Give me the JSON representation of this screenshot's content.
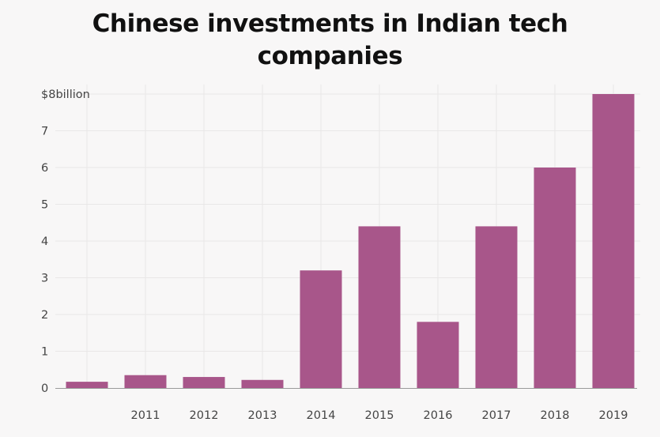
{
  "chart_data": {
    "type": "bar",
    "title": "Chinese investments in Indian tech companies",
    "categories": [
      "",
      "2011",
      "2012",
      "2013",
      "2014",
      "2015",
      "2016",
      "2017",
      "2018",
      "2019"
    ],
    "values": [
      0.17,
      0.35,
      0.3,
      0.22,
      3.2,
      4.4,
      1.8,
      4.4,
      6.0,
      8.0
    ],
    "y_tick_labels": [
      "0",
      "1",
      "2",
      "3",
      "4",
      "5",
      "6",
      "7",
      "$8billion"
    ],
    "y_ticks": [
      0,
      1,
      2,
      3,
      4,
      5,
      6,
      7,
      8
    ],
    "ylim": [
      0,
      8
    ],
    "xlabel": "",
    "ylabel": "",
    "grid": true,
    "bar_color": "#a8568a",
    "grid_color": "#e9e7e7",
    "baseline_color": "#9a9a9a"
  }
}
